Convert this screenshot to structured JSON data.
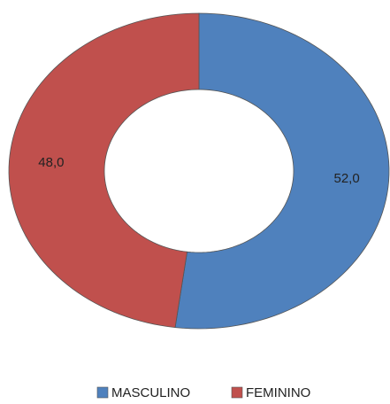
{
  "chart_data": {
    "type": "donut",
    "categories": [
      "MASCULINO",
      "FEMININO"
    ],
    "values": [
      52.0,
      48.0
    ],
    "value_labels": [
      "52,0",
      "48,0"
    ],
    "colors": [
      "#4f81bd",
      "#c0504d"
    ],
    "legend": "bottom"
  }
}
